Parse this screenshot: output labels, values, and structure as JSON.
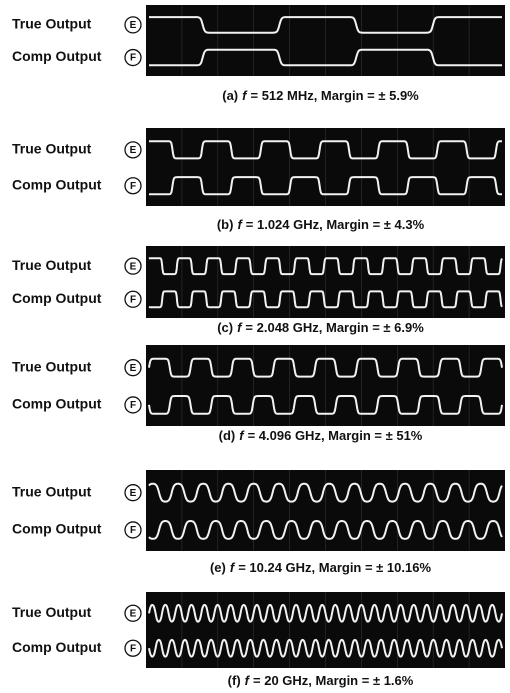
{
  "panels": [
    {
      "true_label": "True Output",
      "true_marker": "E",
      "comp_label": "Comp Output",
      "comp_marker": "F",
      "caption": {
        "label": "(a)",
        "variable": "f",
        "text": "= 512 MHz, Margin = ± 5.9%"
      }
    },
    {
      "true_label": "True Output",
      "true_marker": "E",
      "comp_label": "Comp Output",
      "comp_marker": "F",
      "caption": {
        "label": "(b)",
        "variable": "f",
        "text": "= 1.024 GHz, Margin = ± 4.3%"
      }
    },
    {
      "true_label": "True Output",
      "true_marker": "E",
      "comp_label": "Comp Output",
      "comp_marker": "F",
      "caption": {
        "label": "(c)",
        "variable": "f",
        "text": "= 2.048 GHz, Margin = ± 6.9%"
      }
    },
    {
      "true_label": "True Output",
      "true_marker": "E",
      "comp_label": "Comp Output",
      "comp_marker": "F",
      "caption": {
        "label": "(d)",
        "variable": "f",
        "text": "= 4.096 GHz, Margin = ± 51%"
      }
    },
    {
      "true_label": "True Output",
      "true_marker": "E",
      "comp_label": "Comp Output",
      "comp_marker": "F",
      "caption": {
        "label": "(e)",
        "variable": "f",
        "text": "= 10.24 GHz, Margin = ± 10.16%"
      }
    },
    {
      "true_label": "True Output",
      "true_marker": "E",
      "comp_label": "Comp Output",
      "comp_marker": "F",
      "caption": {
        "label": "(f)",
        "variable": "f",
        "text": "= 20 GHz, Margin = ± 1.6%"
      }
    }
  ]
}
